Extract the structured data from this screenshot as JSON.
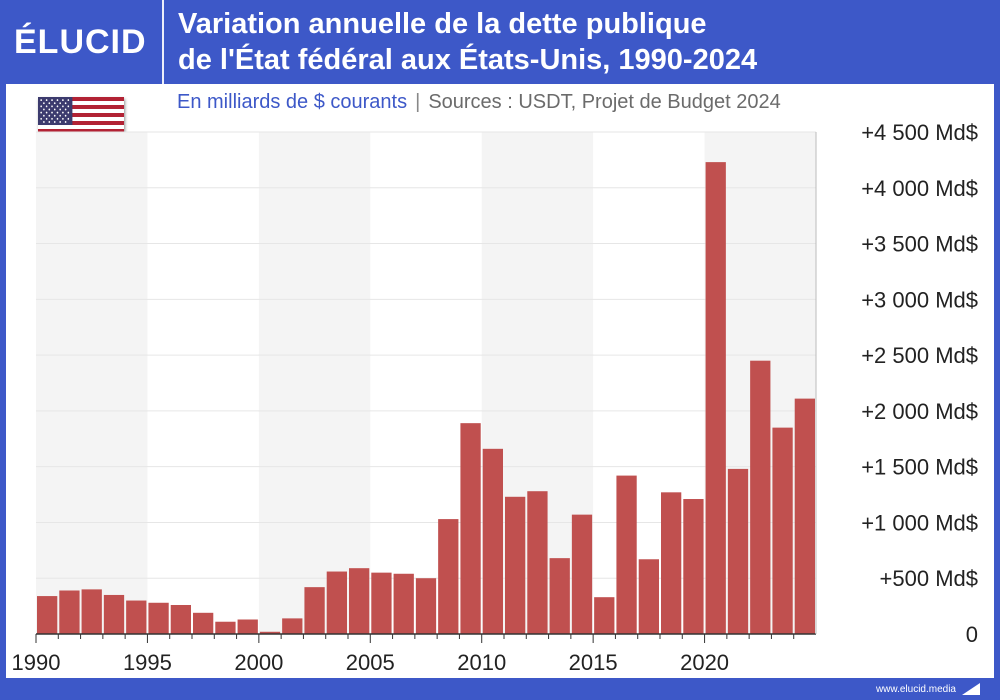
{
  "brand": {
    "logo": "ÉLUCID",
    "footer_url": "www.elucid.media"
  },
  "header": {
    "title_line1": "Variation annuelle de la dette publique",
    "title_line2": "de l'État fédéral aux États-Unis, 1990-2024"
  },
  "subtitle": {
    "unit": "En milliards de $ courants",
    "separator": "|",
    "sources": "Sources : USDT, Projet de Budget 2024"
  },
  "flag": {
    "icon": "us-flag-icon"
  },
  "colors": {
    "accent": "#3d58c8",
    "bar": "#c0504f",
    "band": "#f4f4f4",
    "grid": "#e6e6e6",
    "axis": "#333333"
  },
  "chart_data": {
    "type": "bar",
    "x": [
      1990,
      1991,
      1992,
      1993,
      1994,
      1995,
      1996,
      1997,
      1998,
      1999,
      2000,
      2001,
      2002,
      2003,
      2004,
      2005,
      2006,
      2007,
      2008,
      2009,
      2010,
      2011,
      2012,
      2013,
      2014,
      2015,
      2016,
      2017,
      2018,
      2019,
      2020,
      2021,
      2022,
      2023,
      2024
    ],
    "values": [
      340,
      390,
      400,
      350,
      300,
      280,
      260,
      190,
      110,
      130,
      20,
      140,
      420,
      560,
      590,
      550,
      540,
      500,
      1030,
      1890,
      1660,
      1230,
      1280,
      680,
      1070,
      330,
      1420,
      670,
      1270,
      1210,
      4230,
      1480,
      2450,
      1850,
      2110
    ],
    "xticks": [
      {
        "value": 1990,
        "label": "1990"
      },
      {
        "value": 1995,
        "label": "1995"
      },
      {
        "value": 2000,
        "label": "2000"
      },
      {
        "value": 2005,
        "label": "2005"
      },
      {
        "value": 2010,
        "label": "2010"
      },
      {
        "value": 2015,
        "label": "2015"
      },
      {
        "value": 2020,
        "label": "2020"
      }
    ],
    "yticks": [
      {
        "value": 0,
        "label": "0"
      },
      {
        "value": 500,
        "label": "+500 Md$"
      },
      {
        "value": 1000,
        "label": "+1 000 Md$"
      },
      {
        "value": 1500,
        "label": "+1 500 Md$"
      },
      {
        "value": 2000,
        "label": "+2 000 Md$"
      },
      {
        "value": 2500,
        "label": "+2 500 Md$"
      },
      {
        "value": 3000,
        "label": "+3 000 Md$"
      },
      {
        "value": 3500,
        "label": "+3 500 Md$"
      },
      {
        "value": 4000,
        "label": "+4 000 Md$"
      },
      {
        "value": 4500,
        "label": "+4 500 Md$"
      }
    ],
    "ylim": [
      0,
      4500
    ],
    "grid": true,
    "title": "Variation annuelle de la dette publique de l'État fédéral aux États-Unis, 1990-2024",
    "xlabel": "",
    "ylabel": ""
  }
}
